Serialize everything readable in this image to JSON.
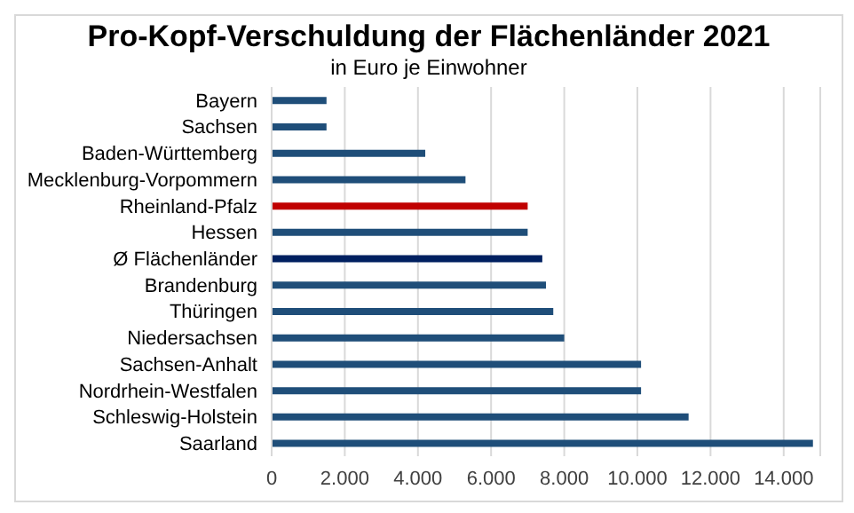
{
  "chart_data": {
    "type": "bar",
    "orientation": "horizontal",
    "title": "Pro-Kopf-Verschuldung der Flächenländer 2021",
    "subtitle": "in Euro je Einwohner",
    "categories": [
      "Bayern",
      "Sachsen",
      "Baden-Württemberg",
      "Mecklenburg-Vorpommern",
      "Rheinland-Pfalz",
      "Hessen",
      "Ø Flächenländer",
      "Brandenburg",
      "Thüringen",
      "Niedersachsen",
      "Sachsen-Anhalt",
      "Nordrhein-Westfalen",
      "Schleswig-Holstein",
      "Saarland"
    ],
    "values": [
      1500,
      1500,
      4200,
      5300,
      7000,
      7000,
      7400,
      7500,
      7700,
      8000,
      10100,
      10100,
      11400,
      14800
    ],
    "colors": [
      "#1f4e79",
      "#1f4e79",
      "#1f4e79",
      "#1f4e79",
      "#c00000",
      "#1f4e79",
      "#002060",
      "#1f4e79",
      "#1f4e79",
      "#1f4e79",
      "#1f4e79",
      "#1f4e79",
      "#1f4e79",
      "#1f4e79"
    ],
    "xlim": [
      0,
      15000
    ],
    "xticks": [
      0,
      {
        "value": 2000,
        "label": "2.000"
      },
      {
        "value": 4000,
        "label": "4.000"
      },
      {
        "value": 6000,
        "label": "6.000"
      },
      {
        "value": 8000,
        "label": "8.000"
      },
      {
        "value": 10000,
        "label": "10.000"
      },
      {
        "value": 12000,
        "label": "12.000"
      },
      {
        "value": 14000,
        "label": "14.000"
      }
    ],
    "grid": "x"
  }
}
